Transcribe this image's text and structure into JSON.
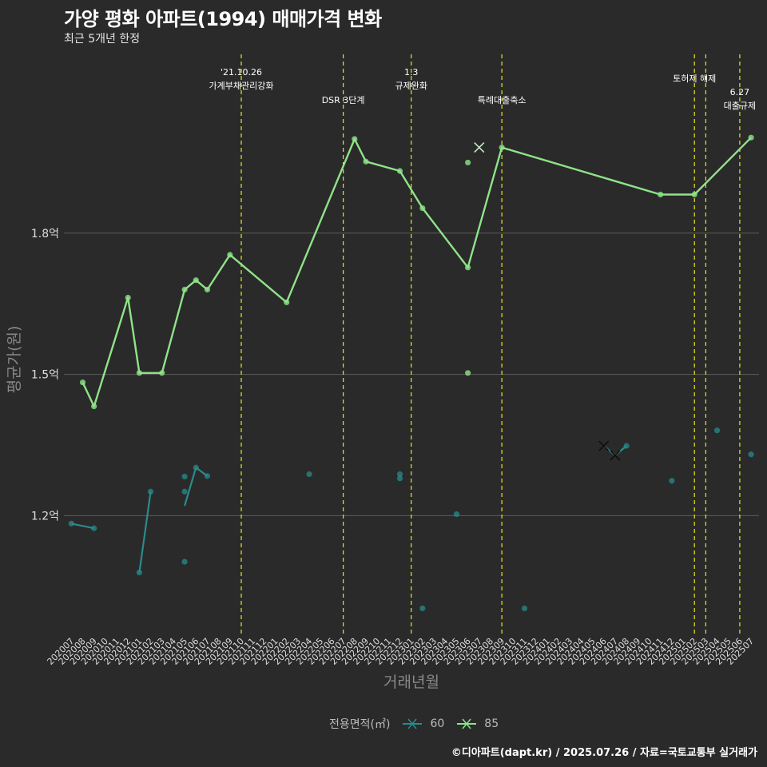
{
  "title": "가양 평화 아파트(1994) 매매가격 변화",
  "subtitle": "최근 5개년 한정",
  "caption": "©디아파트(dapt.kr) / 2025.07.26 / 자료=국토교통부 실거래가",
  "legend": {
    "title": "전용면적(㎡)",
    "items": [
      {
        "label": "60",
        "color": "#2a8b8b"
      },
      {
        "label": "85",
        "color": "#8fe388"
      }
    ]
  },
  "colors": {
    "background": "#2a2a2a",
    "grid": "#5a5a5a",
    "vline": "#e8e81a",
    "axis_text": "#dddddd"
  },
  "chart_data": {
    "type": "line",
    "xlabel": "거래년월",
    "ylabel": "평균가(원)",
    "x_categories": [
      "202007",
      "202008",
      "202009",
      "202010",
      "202011",
      "202012",
      "202101",
      "202102",
      "202103",
      "202104",
      "202105",
      "202106",
      "202107",
      "202108",
      "202109",
      "202110",
      "202111",
      "202112",
      "202201",
      "202202",
      "202203",
      "202204",
      "202205",
      "202206",
      "202207",
      "202208",
      "202209",
      "202210",
      "202211",
      "202212",
      "202301",
      "202302",
      "202303",
      "202304",
      "202305",
      "202306",
      "202307",
      "202308",
      "202309",
      "202310",
      "202311",
      "202312",
      "202401",
      "202402",
      "202403",
      "202404",
      "202405",
      "202406",
      "202407",
      "202408",
      "202409",
      "202410",
      "202411",
      "202412",
      "202501",
      "202502",
      "202503",
      "202504",
      "202505",
      "202506",
      "202507"
    ],
    "y_ticks": [
      {
        "value": 1.2,
        "label": "1.2억"
      },
      {
        "value": 1.5,
        "label": "1.5억"
      },
      {
        "value": 1.8,
        "label": "1.8억"
      }
    ],
    "ylim": [
      0.946,
      2.19
    ],
    "grid": true,
    "series": [
      {
        "name": "85",
        "color": "#8fe388",
        "line": [
          {
            "x": "202008",
            "y": 1.483
          },
          {
            "x": "202009",
            "y": 1.432
          },
          {
            "x": "202012",
            "y": 1.663
          },
          {
            "x": "202101",
            "y": 1.503
          },
          {
            "x": "202103",
            "y": 1.503
          },
          {
            "x": "202105",
            "y": 1.68
          },
          {
            "x": "202106",
            "y": 1.7
          },
          {
            "x": "202107",
            "y": 1.68
          },
          {
            "x": "202109",
            "y": 1.754
          },
          {
            "x": "202202",
            "y": 1.653
          },
          {
            "x": "202208",
            "y": 2.0
          },
          {
            "x": "202209",
            "y": 1.952
          },
          {
            "x": "202212",
            "y": 1.932
          },
          {
            "x": "202302",
            "y": 1.853
          },
          {
            "x": "202306",
            "y": 1.727
          },
          {
            "x": "202309",
            "y": 1.982
          },
          {
            "x": "202411",
            "y": 1.882
          },
          {
            "x": "202502",
            "y": 1.882
          },
          {
            "x": "202507",
            "y": 2.003
          }
        ],
        "points": [
          {
            "x": "202306",
            "y": 1.95
          },
          {
            "x": "202306",
            "y": 1.503
          }
        ],
        "cross_points": [
          {
            "x": "202307",
            "y": 1.982
          }
        ]
      },
      {
        "name": "60",
        "color": "#2a8b8b",
        "segments": [
          [
            {
              "x": "202007",
              "y": 1.183
            },
            {
              "x": "202009",
              "y": 1.173
            }
          ],
          [
            {
              "x": "202101",
              "y": 1.079
            },
            {
              "x": "202102",
              "y": 1.251
            }
          ],
          [
            {
              "x": "202105",
              "y": 1.221
            },
            {
              "x": "202106",
              "y": 1.302
            }
          ],
          [
            {
              "x": "202106",
              "y": 1.302
            },
            {
              "x": "202107",
              "y": 1.284
            }
          ],
          [
            {
              "x": "202406",
              "y": 1.348
            },
            {
              "x": "202407",
              "y": 1.328
            }
          ],
          [
            {
              "x": "202407",
              "y": 1.328
            },
            {
              "x": "202408",
              "y": 1.348
            }
          ]
        ],
        "points": [
          {
            "x": "202007",
            "y": 1.183
          },
          {
            "x": "202009",
            "y": 1.173
          },
          {
            "x": "202101",
            "y": 1.079
          },
          {
            "x": "202102",
            "y": 1.251
          },
          {
            "x": "202105",
            "y": 1.102
          },
          {
            "x": "202105",
            "y": 1.251
          },
          {
            "x": "202105",
            "y": 1.283
          },
          {
            "x": "202106",
            "y": 1.302
          },
          {
            "x": "202107",
            "y": 1.284
          },
          {
            "x": "202204",
            "y": 1.288
          },
          {
            "x": "202212",
            "y": 1.288
          },
          {
            "x": "202212",
            "y": 1.279
          },
          {
            "x": "202302",
            "y": 1.003
          },
          {
            "x": "202305",
            "y": 1.203
          },
          {
            "x": "202311",
            "y": 1.003
          },
          {
            "x": "202408",
            "y": 1.348
          },
          {
            "x": "202412",
            "y": 1.274
          },
          {
            "x": "202504",
            "y": 1.381
          },
          {
            "x": "202507",
            "y": 1.33
          }
        ],
        "cross_points": [
          {
            "x": "202406",
            "y": 1.348
          },
          {
            "x": "202407",
            "y": 1.328
          }
        ]
      }
    ],
    "events": [
      {
        "x": "202110",
        "lines": [
          "'21.10.26",
          "가계부채관리강화"
        ],
        "level": "high"
      },
      {
        "x": "202207",
        "lines": [
          "DSR 3단계"
        ],
        "level": "low"
      },
      {
        "x": "202301",
        "lines": [
          "1.3",
          "규제완화"
        ],
        "level": "high"
      },
      {
        "x": "202309",
        "lines": [
          "특례대출축소"
        ],
        "level": "low"
      },
      {
        "x": "202502",
        "lines": [
          "토허제 해제"
        ],
        "level": "mid"
      },
      {
        "x": "202503",
        "lines": [],
        "level": "none"
      },
      {
        "x": "202506",
        "lines": [
          "6.27",
          "대출규제"
        ],
        "level": "mid2"
      }
    ]
  }
}
